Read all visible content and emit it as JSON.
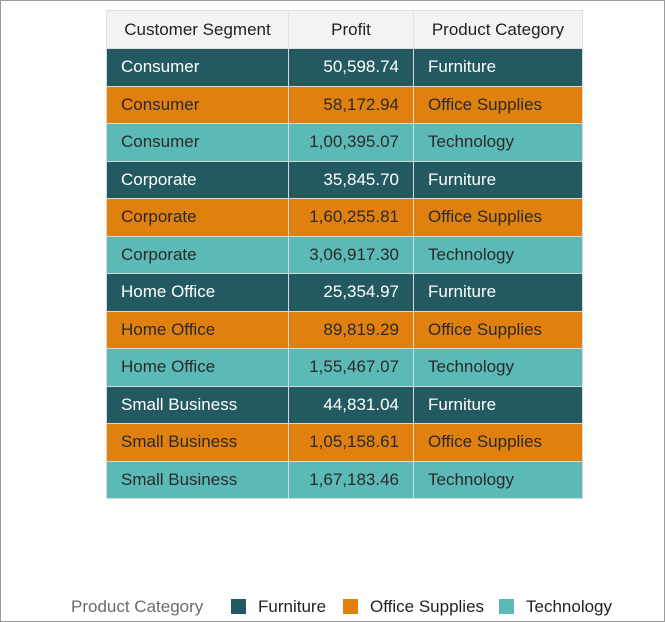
{
  "table": {
    "header": [
      "Customer Segment",
      "Profit",
      "Product Category"
    ],
    "rows": [
      [
        "Consumer",
        "50,598.74",
        "Furniture"
      ],
      [
        "Consumer",
        "58,172.94",
        "Office Supplies"
      ],
      [
        "Consumer",
        "1,00,395.07",
        "Technology"
      ],
      [
        "Corporate",
        "35,845.70",
        "Furniture"
      ],
      [
        "Corporate",
        "1,60,255.81",
        "Office Supplies"
      ],
      [
        "Corporate",
        "3,06,917.30",
        "Technology"
      ],
      [
        "Home Office",
        "25,354.97",
        "Furniture"
      ],
      [
        "Home Office",
        "89,819.29",
        "Office Supplies"
      ],
      [
        "Home Office",
        "1,55,467.07",
        "Technology"
      ],
      [
        "Small Business",
        "44,831.04",
        "Furniture"
      ],
      [
        "Small Business",
        "1,05,158.61",
        "Office Supplies"
      ],
      [
        "Small Business",
        "1,67,183.46",
        "Technology"
      ]
    ]
  },
  "legend": {
    "title": "Product Category",
    "items": [
      {
        "name": "Furniture",
        "color": "#235a62",
        "text_color": "#ffffff"
      },
      {
        "name": "Office Supplies",
        "color": "#e0800f",
        "text_color": "#2a2a2a"
      },
      {
        "name": "Technology",
        "color": "#5cbab6",
        "text_color": "#2a2a2a"
      }
    ]
  }
}
